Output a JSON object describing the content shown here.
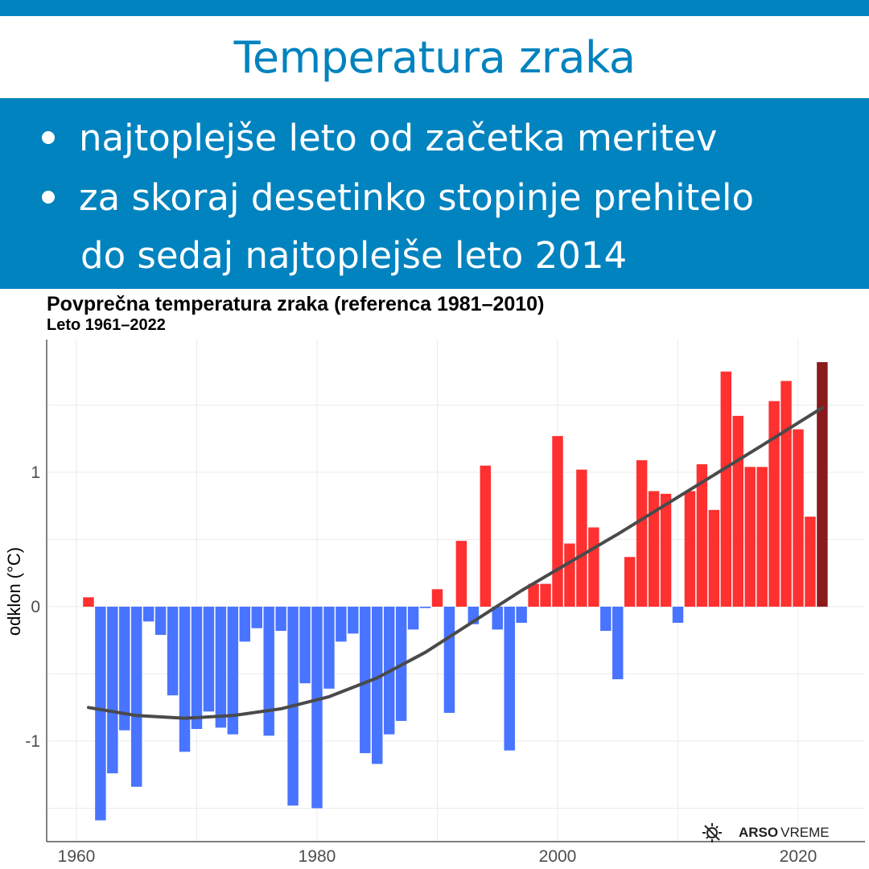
{
  "header": {
    "title": "Temperatura zraka",
    "bullets": [
      "najtoplejše leto od začetka meritev",
      "za skoraj desetinko stopinje prehitelo",
      "do sedaj najtoplejše leto 2014"
    ]
  },
  "colors": {
    "brand": "#0083be",
    "negative": "#4874ff",
    "positive": "#ff3030",
    "highlight": "#8b1a1a",
    "trend": "#4a4a4a"
  },
  "logo": {
    "bold": "ARSO",
    "regular": "VREME",
    "icon": "sun-icon"
  },
  "chart_data": {
    "type": "bar",
    "title": "Povprečna temperatura zraka (referenca 1981–2010)",
    "subtitle": "Leto 1961–2022",
    "xlabel": "",
    "ylabel": "odklon (°C)",
    "xlim": [
      1958.5,
      2024.5
    ],
    "ylim": [
      -1.75,
      2.0
    ],
    "xticks": [
      1960,
      1980,
      2000,
      2020
    ],
    "yticks": [
      -1,
      0,
      1
    ],
    "grid": true,
    "legend": "none",
    "highlight_year": 2022,
    "x": [
      1961,
      1962,
      1963,
      1964,
      1965,
      1966,
      1967,
      1968,
      1969,
      1970,
      1971,
      1972,
      1973,
      1974,
      1975,
      1976,
      1977,
      1978,
      1979,
      1980,
      1981,
      1982,
      1983,
      1984,
      1985,
      1986,
      1987,
      1988,
      1989,
      1990,
      1991,
      1992,
      1993,
      1994,
      1995,
      1996,
      1997,
      1998,
      1999,
      2000,
      2001,
      2002,
      2003,
      2004,
      2005,
      2006,
      2007,
      2008,
      2009,
      2010,
      2011,
      2012,
      2013,
      2014,
      2015,
      2016,
      2017,
      2018,
      2019,
      2020,
      2021,
      2022
    ],
    "values": [
      0.07,
      -1.59,
      -1.24,
      -0.92,
      -1.34,
      -0.11,
      -0.21,
      -0.66,
      -1.08,
      -0.91,
      -0.78,
      -0.9,
      -0.95,
      -0.26,
      -0.16,
      -0.96,
      -0.18,
      -1.48,
      -0.57,
      -1.5,
      -0.61,
      -0.26,
      -0.2,
      -1.09,
      -1.17,
      -0.95,
      -0.85,
      -0.17,
      -0.01,
      0.13,
      -0.79,
      0.49,
      -0.13,
      1.05,
      -0.17,
      -1.07,
      -0.12,
      0.17,
      0.17,
      1.27,
      0.47,
      1.02,
      0.59,
      -0.18,
      -0.54,
      0.37,
      1.09,
      0.86,
      0.84,
      -0.12,
      0.86,
      1.06,
      0.72,
      1.75,
      1.42,
      1.04,
      1.04,
      1.53,
      1.68,
      1.32,
      0.67,
      1.82
    ],
    "trend": {
      "x": [
        1961,
        1965,
        1969,
        1973,
        1977,
        1981,
        1985,
        1989,
        1993,
        1997,
        2001,
        2005,
        2009,
        2013,
        2017,
        2022
      ],
      "values": [
        -0.75,
        -0.81,
        -0.83,
        -0.81,
        -0.76,
        -0.67,
        -0.53,
        -0.34,
        -0.11,
        0.12,
        0.33,
        0.54,
        0.76,
        0.98,
        1.2,
        1.48
      ]
    }
  }
}
